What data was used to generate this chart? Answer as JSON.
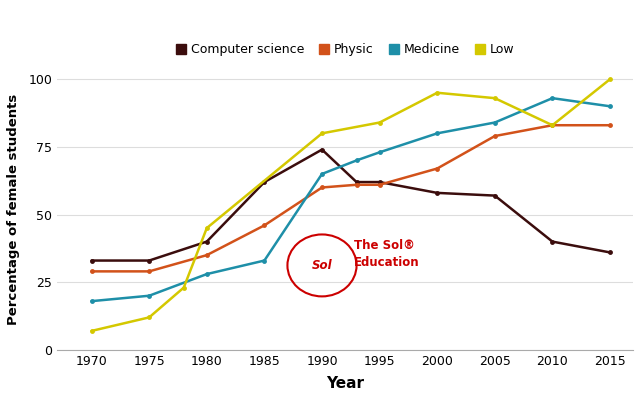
{
  "years": [
    1970,
    1975,
    1978,
    1980,
    1985,
    1990,
    1993,
    1995,
    2000,
    2005,
    2010,
    2015
  ],
  "computer_science": [
    33,
    33,
    null,
    40,
    62,
    74,
    62,
    62,
    58,
    57,
    40,
    36
  ],
  "physic": [
    29,
    29,
    null,
    35,
    46,
    60,
    61,
    61,
    67,
    79,
    83,
    83
  ],
  "medicine": [
    18,
    20,
    null,
    28,
    33,
    65,
    70,
    73,
    80,
    84,
    93,
    90
  ],
  "low": [
    7,
    12,
    23,
    45,
    null,
    80,
    null,
    84,
    95,
    93,
    83,
    100
  ],
  "colors": {
    "computer_science": "#3b0d0d",
    "physic": "#d2521a",
    "medicine": "#1e8fa8",
    "low": "#d4c800"
  },
  "ylabel": "Percentage of female students",
  "xlabel": "Year",
  "ylim": [
    0,
    104
  ],
  "yticks": [
    0,
    25,
    50,
    75,
    100
  ],
  "xticks": [
    1970,
    1975,
    1980,
    1985,
    1990,
    1995,
    2000,
    2005,
    2010,
    2015
  ],
  "legend_labels": [
    "Computer science",
    "Physic",
    "Medicine",
    "Low"
  ],
  "background_color": "#ffffff",
  "watermark_text": "The Sol®\nEducation",
  "watermark_sol": "Sol"
}
